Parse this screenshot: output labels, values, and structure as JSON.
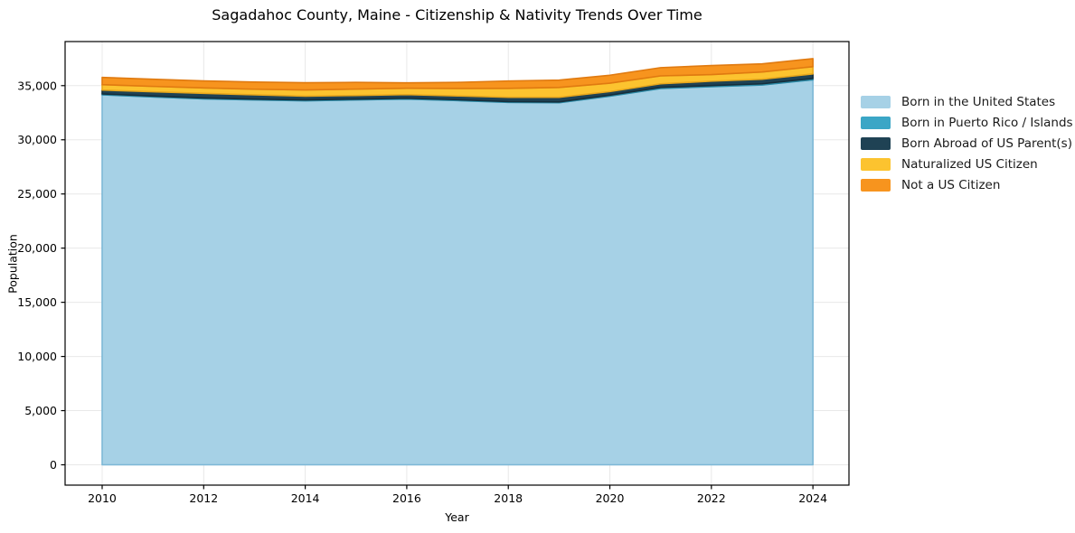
{
  "chart_data": {
    "type": "area",
    "stacked": true,
    "title": "Sagadahoc County, Maine - Citizenship & Nativity Trends Over Time",
    "xlabel": "Year",
    "ylabel": "Population",
    "x": [
      2010,
      2011,
      2012,
      2013,
      2014,
      2015,
      2016,
      2017,
      2018,
      2019,
      2020,
      2021,
      2022,
      2023,
      2024
    ],
    "series": [
      {
        "name": "Born in the United States",
        "color": "#a6d1e6",
        "edge_color": "#7db8d6",
        "values": [
          34150,
          33950,
          33780,
          33680,
          33600,
          33680,
          33760,
          33620,
          33450,
          33420,
          34030,
          34740,
          34900,
          35060,
          35540
        ]
      },
      {
        "name": "Born in Puerto Rico / Islands",
        "color": "#3ba6c6",
        "edge_color": "#2b8aa6",
        "values": [
          90,
          90,
          85,
          80,
          80,
          80,
          80,
          80,
          80,
          80,
          90,
          100,
          110,
          110,
          120
        ]
      },
      {
        "name": "Born Abroad of US Parent(s)",
        "color": "#1f4254",
        "edge_color": "#152e3b",
        "values": [
          350,
          390,
          420,
          390,
          350,
          330,
          330,
          350,
          390,
          420,
          330,
          330,
          400,
          420,
          420
        ]
      },
      {
        "name": "Naturalized US Citizen",
        "color": "#fcc32f",
        "edge_color": "#e8a71c",
        "values": [
          500,
          500,
          500,
          520,
          570,
          590,
          590,
          690,
          830,
          910,
          780,
          730,
          610,
          670,
          670
        ]
      },
      {
        "name": "Not a US Citizen",
        "color": "#f7941e",
        "edge_color": "#e07a10",
        "values": [
          670,
          660,
          650,
          660,
          670,
          620,
          500,
          560,
          680,
          680,
          730,
          760,
          830,
          750,
          740
        ]
      }
    ],
    "xticks": [
      2010,
      2012,
      2014,
      2016,
      2018,
      2020,
      2022,
      2024
    ],
    "yticks": [
      0,
      5000,
      10000,
      15000,
      20000,
      25000,
      30000,
      35000
    ],
    "xlim": [
      2009.27,
      2024.71
    ],
    "ylim": [
      -1876,
      39068
    ],
    "grid": true,
    "grid_color": "#e8e8e8",
    "spine_color": "#000000",
    "tick_color": "#000000",
    "background": "#ffffff",
    "legend_position": "outside-right"
  }
}
